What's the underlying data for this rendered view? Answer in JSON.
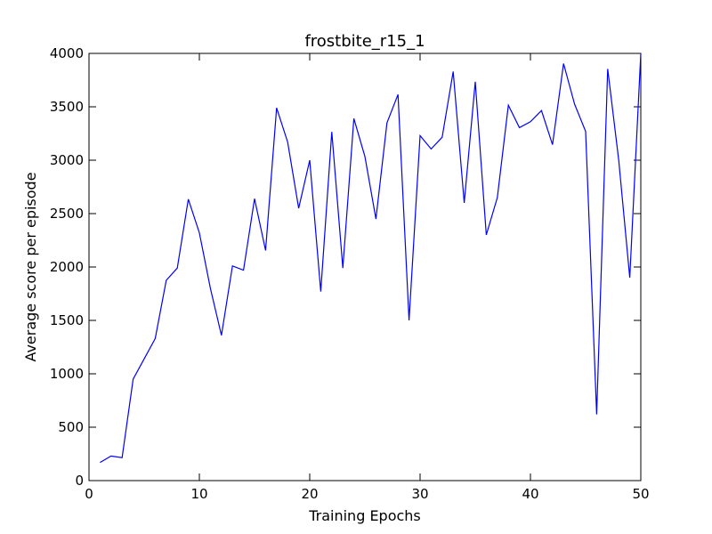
{
  "chart_data": {
    "type": "line",
    "title": "frostbite_r15_1",
    "xlabel": "Training Epochs",
    "ylabel": "Average score per episode",
    "xlim": [
      0,
      50
    ],
    "ylim": [
      0,
      4000
    ],
    "xticks": [
      0,
      10,
      20,
      30,
      40,
      50
    ],
    "yticks": [
      0,
      500,
      1000,
      1500,
      2000,
      2500,
      3000,
      3500,
      4000
    ],
    "grid": false,
    "line_color": "#0000ff",
    "series": [
      {
        "x": [
          1,
          2,
          3,
          4,
          5,
          6,
          7,
          8,
          9,
          10,
          11,
          12,
          13,
          14,
          15,
          16,
          17,
          18,
          19,
          20,
          21,
          22,
          23,
          24,
          25,
          26,
          27,
          28,
          29,
          30,
          31,
          32,
          33,
          34,
          35,
          36,
          37,
          38,
          39,
          40,
          41,
          42,
          43,
          44,
          45,
          46,
          47,
          48,
          49,
          50
        ],
        "values": [
          170,
          230,
          215,
          950,
          1140,
          1330,
          1875,
          1990,
          2635,
          2320,
          1800,
          1360,
          2010,
          1970,
          2640,
          2155,
          3490,
          3170,
          2550,
          3000,
          1770,
          3265,
          1990,
          3390,
          3035,
          2450,
          3350,
          3615,
          1500,
          3230,
          3105,
          3215,
          3830,
          2600,
          3735,
          2300,
          2650,
          3515,
          3305,
          3360,
          3465,
          3145,
          3905,
          3525,
          3270,
          620,
          3855,
          3000,
          1900,
          4000
        ]
      }
    ]
  }
}
